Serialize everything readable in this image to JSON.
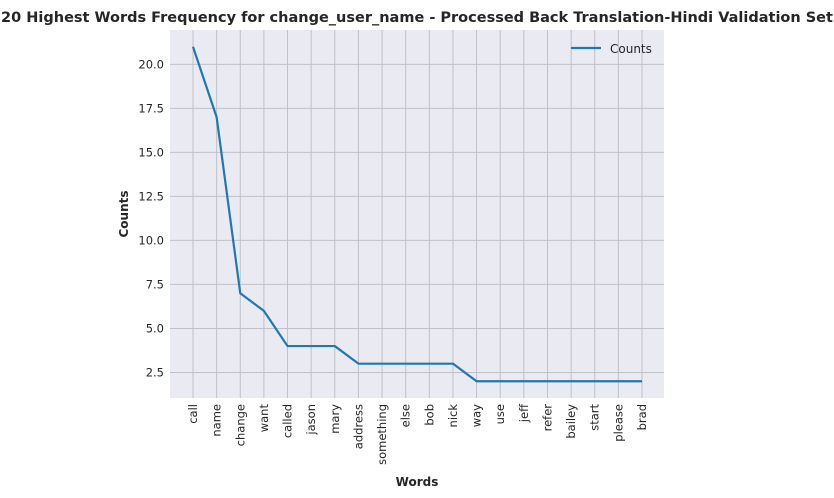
{
  "chart_data": {
    "type": "line",
    "title": "20 Highest Words Frequency for change_user_name - Processed Back Translation-Hindi Validation Set",
    "xlabel": "Words",
    "ylabel": "Counts",
    "categories": [
      "call",
      "name",
      "change",
      "want",
      "called",
      "jason",
      "mary",
      "address",
      "something",
      "else",
      "bob",
      "nick",
      "way",
      "use",
      "jeff",
      "refer",
      "bailey",
      "start",
      "please",
      "brad"
    ],
    "series": [
      {
        "name": "Counts",
        "values": [
          21,
          17,
          7,
          6,
          4,
          4,
          4,
          3,
          3,
          3,
          3,
          3,
          2,
          2,
          2,
          2,
          2,
          2,
          2,
          2
        ]
      }
    ],
    "ylim": [
      1.05,
      21.95
    ],
    "yticks": [
      "2.5",
      "5.0",
      "7.5",
      "10.0",
      "12.5",
      "15.0",
      "17.5",
      "20.0"
    ],
    "grid": true,
    "legend": "top-right",
    "colors": {
      "line": "#1f77b4",
      "background": "#eaeaf2",
      "grid": "#c0c0c8"
    }
  }
}
